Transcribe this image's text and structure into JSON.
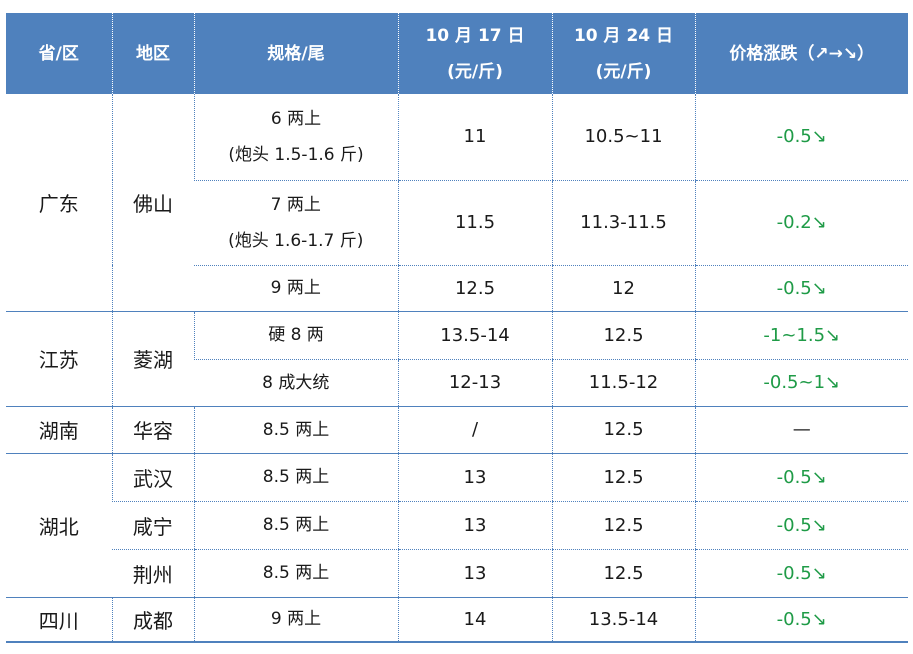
{
  "header": {
    "province": "省/区",
    "region": "地区",
    "spec": "规格/尾",
    "date1_line1": "10 月 17 日",
    "date1_line2": "(元/斤)",
    "date2_line1": "10 月 24 日",
    "date2_line2": "(元/斤)",
    "change": "价格涨跌（↗→↘）"
  },
  "groups": {
    "guangdong": {
      "province": "广东",
      "region": "佛山",
      "rows": [
        {
          "spec_line1": "6 两上",
          "spec_line2": "(炮头 1.5-1.6 斤)",
          "price1": "11",
          "price2": "10.5~11",
          "change": "-0.5↘"
        },
        {
          "spec_line1": "7 两上",
          "spec_line2": "(炮头 1.6-1.7 斤)",
          "price1": "11.5",
          "price2": "11.3-11.5",
          "change": "-0.2↘"
        },
        {
          "spec_line1": "9 两上",
          "price1": "12.5",
          "price2": "12",
          "change": "-0.5↘"
        }
      ]
    },
    "jiangsu": {
      "province": "江苏",
      "region": "菱湖",
      "rows": [
        {
          "spec_line1": "硬 8 两",
          "price1": "13.5-14",
          "price2": "12.5",
          "change": "-1~1.5↘"
        },
        {
          "spec_line1": "8 成大统",
          "price1": "12-13",
          "price2": "11.5-12",
          "change": "-0.5~1↘"
        }
      ]
    },
    "hunan": {
      "province": "湖南",
      "region": "华容",
      "rows": [
        {
          "spec_line1": "8.5 两上",
          "price1": "/",
          "price2": "12.5",
          "change": "—"
        }
      ]
    },
    "hubei": {
      "province": "湖北",
      "rows": [
        {
          "region": "武汉",
          "spec_line1": "8.5 两上",
          "price1": "13",
          "price2": "12.5",
          "change": "-0.5↘"
        },
        {
          "region": "咸宁",
          "spec_line1": "8.5 两上",
          "price1": "13",
          "price2": "12.5",
          "change": "-0.5↘"
        },
        {
          "region": "荆州",
          "spec_line1": "8.5 两上",
          "price1": "13",
          "price2": "12.5",
          "change": "-0.5↘"
        }
      ]
    },
    "sichuan": {
      "province": "四川",
      "region": "成都",
      "rows": [
        {
          "spec_line1": "9 两上",
          "price1": "14",
          "price2": "13.5-14",
          "change": "-0.5↘"
        }
      ]
    }
  },
  "colors": {
    "header_bg": "#4f81bd",
    "header_text": "#ffffff",
    "change_text": "#1f9b47",
    "border": "#4f81bd"
  }
}
